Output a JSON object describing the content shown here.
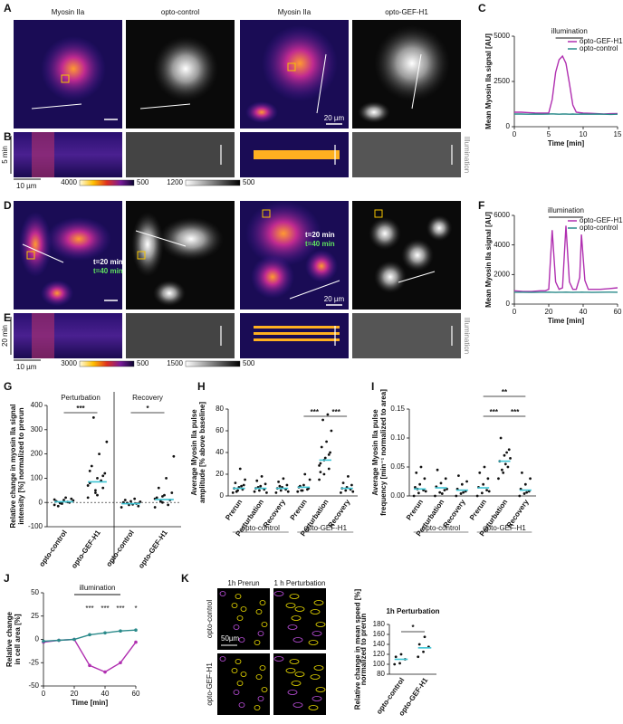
{
  "figure": {
    "panel_letters": [
      "A",
      "B",
      "C",
      "D",
      "E",
      "F",
      "G",
      "H",
      "I",
      "J",
      "K"
    ],
    "image_labels": [
      "Myosin IIa",
      "opto-control",
      "Myosin IIa",
      "opto-GEF-H1"
    ],
    "colorbars": [
      {
        "max": 4000,
        "min": 500
      },
      {
        "max": 1200,
        "min": 500
      },
      {
        "max": 3000,
        "min": 500
      },
      {
        "max": 1500,
        "min": 500
      }
    ],
    "scale_labels": {
      "a": "20 µm",
      "b_x": "10 µm",
      "b_t": "5 min",
      "d": "20 µm",
      "e_x": "10 µm",
      "e_t": "20 min"
    },
    "illumination_label": "Illumination",
    "time_labels": [
      "t=20 min",
      "t=40 min"
    ],
    "k": {
      "columns": [
        "1h Prerun",
        "1 h Perturbation"
      ],
      "rows": [
        "opto-control",
        "opto-GEF-H1"
      ],
      "scale": "50µm"
    }
  },
  "chart_data": [
    {
      "type": "line",
      "ylabel": [
        "Mean Myosin IIa signal [AU]"
      ],
      "xlabel": "Time [min]",
      "x": [
        0,
        1,
        2,
        3,
        4,
        5,
        5.5,
        6,
        6.5,
        7,
        7.5,
        8,
        8.5,
        9,
        10,
        11,
        12,
        13,
        14,
        15
      ],
      "xlim": [
        0,
        15
      ],
      "xticks": [
        0,
        5,
        10,
        15
      ],
      "ylim": [
        0,
        5000
      ],
      "yticks": [
        0,
        2500,
        5000
      ],
      "series": [
        {
          "name": "opto-GEF-H1",
          "color": "#b02fb0",
          "values": [
            800,
            800,
            780,
            760,
            750,
            760,
            1500,
            3000,
            3700,
            3900,
            3500,
            2400,
            1200,
            800,
            750,
            740,
            720,
            700,
            720,
            730
          ]
        },
        {
          "name": "opto-control",
          "color": "#2a8a8a",
          "values": [
            700,
            700,
            690,
            700,
            690,
            700,
            710,
            700,
            690,
            700,
            700,
            690,
            700,
            690,
            700,
            690,
            700,
            690,
            680,
            690
          ]
        }
      ],
      "annotation": {
        "label": "illumination",
        "range": [
          6,
          10
        ]
      },
      "legend": "upper right"
    },
    {
      "type": "line",
      "ylabel": [
        "Mean Myosin IIa signal [AU]"
      ],
      "xlabel": "Time [min]",
      "x": [
        0,
        5,
        10,
        15,
        18,
        20,
        22,
        24,
        26,
        28,
        30,
        32,
        34,
        36,
        38,
        39,
        41,
        43,
        45,
        50,
        55,
        60
      ],
      "xlim": [
        0,
        60
      ],
      "xticks": [
        0,
        20,
        40,
        60
      ],
      "ylim": [
        0,
        6000
      ],
      "yticks": [
        0,
        2000,
        4000,
        6000
      ],
      "series": [
        {
          "name": "opto-GEF-H1",
          "color": "#b02fb0",
          "values": [
            900,
            850,
            850,
            900,
            900,
            1000,
            5000,
            1500,
            1000,
            1100,
            5300,
            1500,
            1000,
            1000,
            1800,
            4700,
            1600,
            1000,
            1000,
            1000,
            1050,
            1100
          ]
        },
        {
          "name": "opto-control",
          "color": "#2a8a8a",
          "values": [
            800,
            800,
            790,
            800,
            800,
            810,
            800,
            790,
            800,
            800,
            810,
            800,
            790,
            800,
            800,
            810,
            800,
            800,
            790,
            800,
            810,
            800
          ]
        }
      ],
      "annotation": {
        "label": "illumination",
        "range": [
          20,
          40
        ]
      },
      "legend": "upper right"
    },
    {
      "type": "strip",
      "ylabel": [
        "Relative change in myosin IIa signal",
        "intensity [%] normalized to prerun"
      ],
      "ylim": [
        -100,
        400
      ],
      "yticks": [
        -100,
        0,
        100,
        200,
        300,
        400
      ],
      "zero_line": true,
      "divider": true,
      "group_label_position": "top",
      "groups": [
        {
          "name": "Perturbation",
          "categories": [
            "opto-control",
            "opto-GEF-H1"
          ],
          "points": [
            [
              -10,
              -5,
              0,
              5,
              10,
              15,
              -15,
              20,
              8,
              -3,
              2,
              12
            ],
            [
              20,
              40,
              60,
              80,
              100,
              120,
              150,
              200,
              250,
              350,
              90,
              70,
              50,
              110,
              130,
              30
            ]
          ],
          "means": [
            3,
            85
          ]
        },
        {
          "name": "Recovery",
          "categories": [
            "opto-control",
            "opto-GEF-H1"
          ],
          "points": [
            [
              -20,
              -10,
              -5,
              0,
              5,
              -15,
              10,
              -8,
              3,
              -2,
              15
            ],
            [
              -20,
              0,
              10,
              20,
              30,
              40,
              60,
              100,
              190,
              5,
              -10,
              15,
              25
            ]
          ],
          "means": [
            -5,
            12
          ]
        }
      ],
      "significance": [
        {
          "label": "***",
          "categories": [
            0,
            1
          ]
        },
        {
          "label": "*",
          "categories": [
            2,
            3
          ]
        }
      ]
    },
    {
      "type": "strip",
      "ylabel": [
        "Average Myosin IIa pulse",
        "amplitude [% above baseline]"
      ],
      "ylim": [
        0,
        80
      ],
      "yticks": [
        0,
        20,
        40,
        60,
        80
      ],
      "group_label_position": "bottom",
      "groups": [
        {
          "name": "opto-control",
          "categories": [
            "Prerun",
            "Perturbation",
            "Recovery"
          ],
          "points": [
            [
              3,
              5,
              6,
              7,
              8,
              10,
              12,
              25,
              15,
              4,
              9
            ],
            [
              4,
              5,
              6,
              7,
              9,
              11,
              14,
              18,
              3,
              8
            ],
            [
              3,
              5,
              6,
              7,
              8,
              10,
              13,
              16,
              4,
              9
            ]
          ],
          "means": [
            7,
            7,
            7
          ]
        },
        {
          "name": "opto-GEF-H1",
          "categories": [
            "Prerun",
            "Perturbation",
            "Recovery"
          ],
          "points": [
            [
              4,
              5,
              6,
              8,
              10,
              7,
              9,
              20,
              15,
              5
            ],
            [
              15,
              20,
              25,
              30,
              35,
              40,
              45,
              50,
              60,
              70,
              75,
              28,
              33,
              38,
              22
            ],
            [
              3,
              5,
              6,
              7,
              8,
              10,
              12,
              18,
              4
            ]
          ],
          "means": [
            8,
            33,
            7
          ]
        }
      ],
      "significance": [
        {
          "label": "***",
          "categories": [
            3,
            4
          ]
        },
        {
          "label": "***",
          "categories": [
            4,
            5
          ]
        }
      ]
    },
    {
      "type": "strip",
      "ylabel": [
        "Average Myosin IIa pulse",
        "frequency [min⁻¹ normalized to area]"
      ],
      "ylim": [
        0,
        0.15
      ],
      "yticks": [
        {
          "value": 0,
          "label": "0.00"
        },
        {
          "value": 0.05,
          "label": "0.05"
        },
        {
          "value": 0.1,
          "label": "0.10"
        },
        {
          "value": 0.15,
          "label": "0.15"
        }
      ],
      "group_label_position": "bottom",
      "groups": [
        {
          "name": "opto-control",
          "categories": [
            "Prerun",
            "Perturbation",
            "Recovery"
          ],
          "points": [
            [
              0,
              0.005,
              0.01,
              0.015,
              0.02,
              0.03,
              0.04,
              0.05,
              0.008,
              0.012
            ],
            [
              0,
              0.006,
              0.01,
              0.016,
              0.022,
              0.03,
              0.045,
              0.004,
              0.012
            ],
            [
              0,
              0.004,
              0.008,
              0.012,
              0.02,
              0.025,
              0.035,
              0.006
            ]
          ],
          "means": [
            0.012,
            0.014,
            0.01
          ]
        },
        {
          "name": "opto-GEF-H1",
          "categories": [
            "Prerun",
            "Perturbation",
            "Recovery"
          ],
          "points": [
            [
              0,
              0.005,
              0.01,
              0.015,
              0.02,
              0.03,
              0.04,
              0.05,
              0.008
            ],
            [
              0.03,
              0.04,
              0.05,
              0.06,
              0.07,
              0.08,
              0.1,
              0.055,
              0.065,
              0.045,
              0.075
            ],
            [
              0,
              0.004,
              0.008,
              0.012,
              0.02,
              0.03,
              0.04,
              0.006
            ]
          ],
          "means": [
            0.014,
            0.06,
            0.01
          ]
        }
      ],
      "significance": [
        {
          "label": "***",
          "categories": [
            3,
            4
          ]
        },
        {
          "label": "***",
          "categories": [
            4,
            5
          ]
        },
        {
          "label": "**",
          "categories": [
            3,
            5
          ]
        }
      ]
    },
    {
      "type": "line",
      "ylabel": [
        "Relative change",
        "in cell area [%]"
      ],
      "xlabel": "Time [min]",
      "x": [
        0,
        10,
        20,
        30,
        40,
        50,
        60
      ],
      "xlim": [
        0,
        60
      ],
      "xticks": [
        0,
        20,
        40,
        60
      ],
      "ylim": [
        -50,
        50
      ],
      "yticks": [
        -50,
        -25,
        0,
        25,
        50
      ],
      "series": [
        {
          "name": "opto-GEF-H1",
          "color": "#b02fb0",
          "values": [
            -3,
            -1,
            0,
            -28,
            -35,
            -25,
            -3
          ]
        },
        {
          "name": "opto-control",
          "color": "#2a8a8a",
          "values": [
            -2,
            -1,
            0,
            5,
            7,
            9,
            10
          ]
        }
      ],
      "annotation": {
        "label": "illumination",
        "range": [
          20,
          50
        ]
      },
      "marks": [
        {
          "label": "***",
          "x": 30
        },
        {
          "label": "***",
          "x": 40
        },
        {
          "label": "***",
          "x": 50
        },
        {
          "label": "*",
          "x": 60
        }
      ]
    },
    {
      "type": "strip",
      "title": "1h Perturbation",
      "ylabel": [
        "Relative change in mean speed [%]",
        "normalized to prerun"
      ],
      "ylim": [
        80,
        180
      ],
      "yticks": [
        80,
        100,
        120,
        140,
        160,
        180
      ],
      "group_label_position": "none",
      "groups": [
        {
          "name": null,
          "categories": [
            "opto-control",
            "opto-GEF-H1"
          ],
          "points": [
            [
              100,
              102,
              110,
              115,
              120
            ],
            [
              115,
              125,
              135,
              140,
              155
            ]
          ],
          "means": [
            110,
            133
          ]
        }
      ],
      "significance": [
        {
          "label": "*",
          "categories": [
            0,
            1
          ]
        }
      ]
    }
  ]
}
